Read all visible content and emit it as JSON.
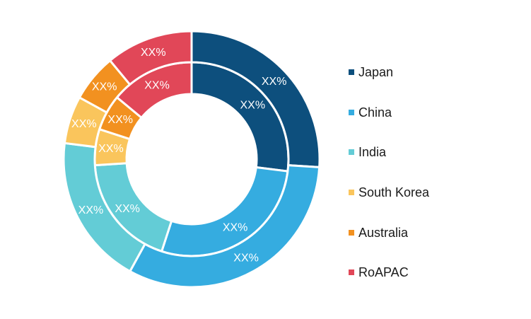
{
  "chart_data": {
    "type": "pie",
    "variant": "double-donut",
    "categories": [
      "Japan",
      "China",
      "India",
      "South Korea",
      "Australia",
      "RoAPAC"
    ],
    "colors": [
      "#0d4f7d",
      "#35ace0",
      "#63ccd6",
      "#fac55c",
      "#f29120",
      "#e14758"
    ],
    "series": [
      {
        "ring": "inner",
        "values": [
          27,
          28,
          19,
          6,
          6,
          14
        ],
        "labels": [
          "XX%",
          "XX%",
          "XX%",
          "XX%",
          "XX%",
          "XX%"
        ]
      },
      {
        "ring": "outer",
        "values": [
          26,
          32,
          19,
          6,
          6,
          11
        ],
        "labels": [
          "XX%",
          "XX%",
          "XX%",
          "XX%",
          "XX%",
          "XX%"
        ]
      }
    ],
    "legend_position": "right"
  }
}
